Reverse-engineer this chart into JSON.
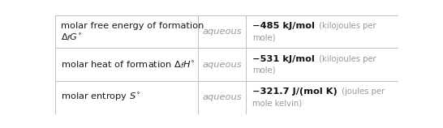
{
  "rows": [
    {
      "col1_line1": "molar free energy of formation",
      "col1_line2": "Δ_fG°",
      "col1_line2_math": "$\\Delta_{f}G^{\\circ}$",
      "col2": "aqueous",
      "col3_bold": "−485 kJ/mol",
      "col3_light": " (kilojoules per\nmole)"
    },
    {
      "col1_line1": "molar heat of formation Δ_fH°",
      "col1_line1_math": "molar heat of formation $\\Delta_{f}H^{\\circ}$",
      "col1_line2": null,
      "col2": "aqueous",
      "col3_bold": "−531 kJ/mol",
      "col3_light": " (kilojoules per\nmole)"
    },
    {
      "col1_line1": "molar entropy S°",
      "col1_line1_math": "molar entropy $S^{\\circ}$",
      "col1_line2": null,
      "col2": "aqueous",
      "col3_bold": "−321.7 J/(mol K)",
      "col3_light": " (joules per\nmole kelvin)"
    }
  ],
  "col_splits": [
    0.0,
    0.415,
    0.555,
    1.0
  ],
  "row_splits": [
    0.0,
    0.333,
    0.667,
    1.0
  ],
  "bg_color": "#ffffff",
  "border_color": "#c0c0c0",
  "text_color_dark": "#1a1a1a",
  "text_color_mid": "#999999",
  "text_color_bold": "#111111",
  "fs_main": 8.2,
  "fs_small": 7.2
}
